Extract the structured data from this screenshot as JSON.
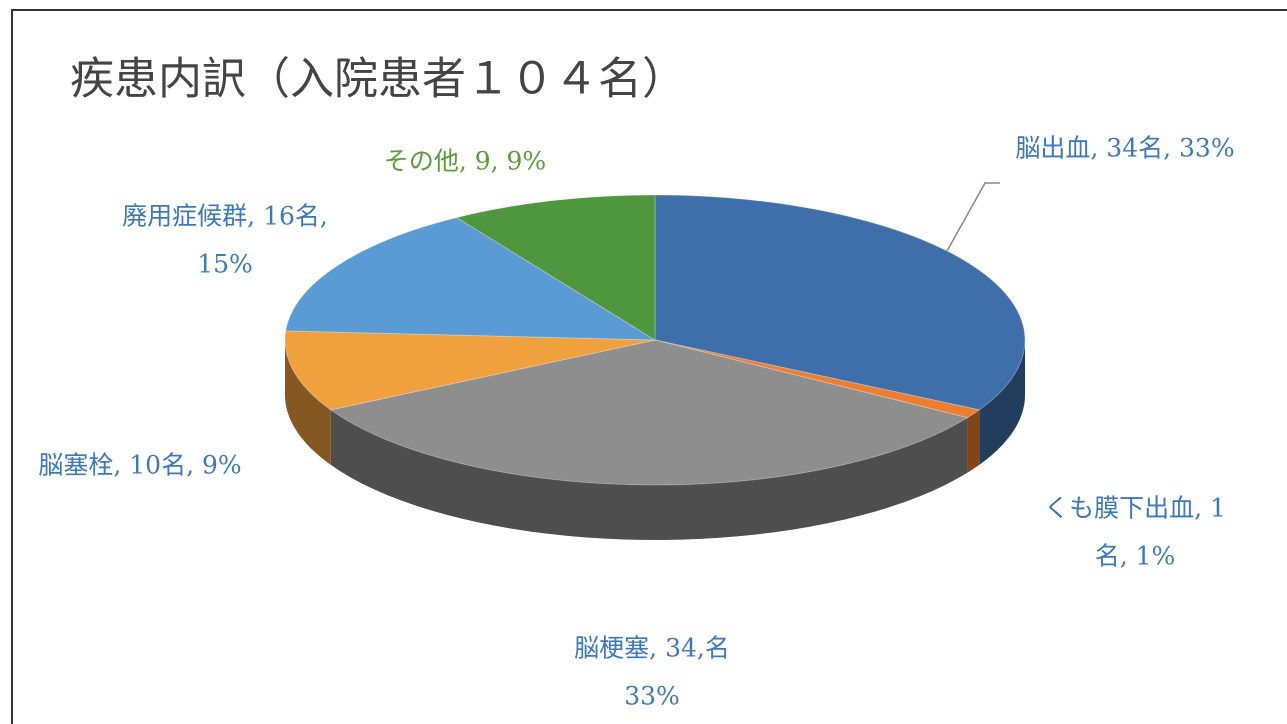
{
  "chart_data": {
    "type": "pie3d",
    "title": "疾患内訳（入院患者１０４名）",
    "values": [
      33,
      1,
      33,
      9,
      15,
      9
    ],
    "value_labels": [
      [
        "脳出血, 34名, 33%"
      ],
      [
        "くも膜下出血, 1",
        "名, 1%"
      ],
      [
        "脳梗塞, 34,名",
        "33%"
      ],
      [
        "脳塞栓, 10名, 9%"
      ],
      [
        "廃用症候群, 16名,",
        "15%"
      ],
      [
        "その他, 9, 9%"
      ]
    ],
    "colors": [
      "#3e6fab",
      "#ed7d31",
      "#8e8e8e",
      "#f1a03e",
      "#5b9bd5",
      "#4f973f"
    ],
    "label_colors": [
      "#3e78b8",
      "#3e78b8",
      "#3e78b8",
      "#3e78b8",
      "#3e78b8",
      "#5a9a3a"
    ]
  }
}
